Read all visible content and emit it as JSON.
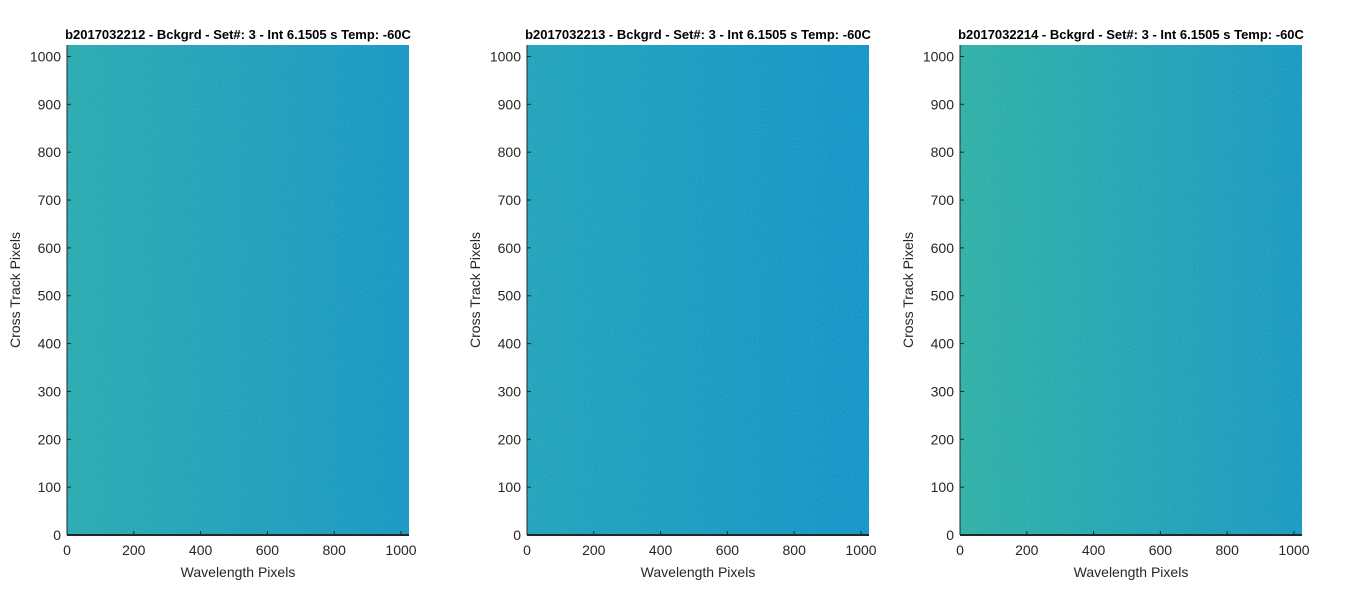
{
  "chart_data": [
    {
      "type": "heatmap",
      "title": "b2017032212 - Bckgrd - Set#: 3 - Int 6.1505 s Temp: -60C",
      "xlabel": "Wavelength Pixels",
      "ylabel": "Cross Track Pixels",
      "xlim": [
        0,
        1024
      ],
      "ylim": [
        0,
        1024
      ],
      "xticks": [
        0,
        200,
        400,
        600,
        800,
        1000
      ],
      "yticks": [
        0,
        100,
        200,
        300,
        400,
        500,
        600,
        700,
        800,
        900,
        1000
      ],
      "colormap": "parula",
      "gradient": {
        "left": "#26a9b4",
        "right": "#1496c8"
      },
      "grid": false
    },
    {
      "type": "heatmap",
      "title": "b2017032213 - Bckgrd - Set#: 3 - Int 6.1505 s Temp: -60C",
      "xlabel": "Wavelength Pixels",
      "ylabel": "Cross Track Pixels",
      "xlim": [
        0,
        1024
      ],
      "ylim": [
        0,
        1024
      ],
      "xticks": [
        0,
        200,
        400,
        600,
        800,
        1000
      ],
      "yticks": [
        0,
        100,
        200,
        300,
        400,
        500,
        600,
        700,
        800,
        900,
        1000
      ],
      "colormap": "parula",
      "gradient": {
        "left": "#1ea2bf",
        "right": "#0f93cc"
      },
      "grid": false
    },
    {
      "type": "heatmap",
      "title": "b2017032214 - Bckgrd - Set#: 3 - Int 6.1505 s Temp: -60C",
      "xlabel": "Wavelength Pixels",
      "ylabel": "Cross Track Pixels",
      "xlim": [
        0,
        1024
      ],
      "ylim": [
        0,
        1024
      ],
      "xticks": [
        0,
        200,
        400,
        600,
        800,
        1000
      ],
      "yticks": [
        0,
        100,
        200,
        300,
        400,
        500,
        600,
        700,
        800,
        900,
        1000
      ],
      "colormap": "parula",
      "gradient": {
        "left": "#2bb0aa",
        "right": "#1698c6"
      },
      "grid": false
    }
  ]
}
